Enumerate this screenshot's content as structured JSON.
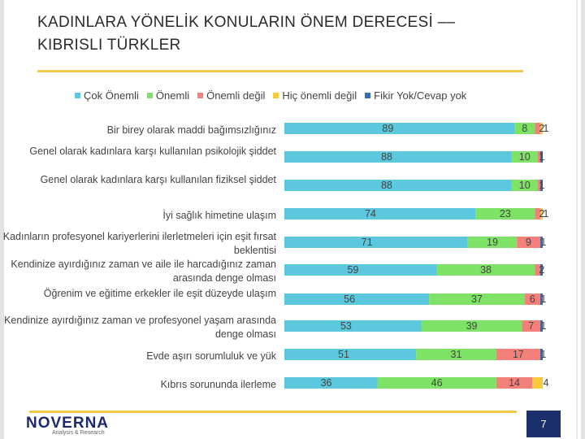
{
  "slide": {
    "title_line1": "KADINLARA YÖNELİK KONULARIN ÖNEM DERECESİ ––",
    "title_line2": "KIBRISLI TÜRKLER",
    "logo": "NOVERNA",
    "logo_sub": "Analysis & Research",
    "page_number": "7"
  },
  "legend": [
    {
      "label": "Çok Önemli",
      "color": "#5bc8dd"
    },
    {
      "label": "Önemli",
      "color": "#7ee266"
    },
    {
      "label": "Önemli değil",
      "color": "#f4807a"
    },
    {
      "label": "Hiç önemli değil",
      "color": "#f8c93c"
    },
    {
      "label": "Fikir Yok/Cevap yok",
      "color": "#2f6fb7"
    }
  ],
  "chart_data": {
    "type": "bar",
    "orientation": "horizontal",
    "stacked": true,
    "percent_scale": [
      0,
      100
    ],
    "categories": [
      "Bir birey olarak maddi bağımsızlığınız",
      "Genel olarak kadınlara karşı kullanılan psikolojik şiddet",
      "Genel olarak kadınlara karşı kullanılan fiziksel şiddet",
      "İyi sağlık himetine ulaşım",
      "Kadınların profesyonel kariyerlerini ilerletmeleri için eşit fırsat beklentisi",
      "Kendinize ayırdığınız zaman ve aile ile harcadığınız zaman arasında denge olması",
      "Öğrenim ve eğitime erkekler ile eşit düzeyde ulaşım",
      "Kendinize ayırdığınız zaman ve profesyonel yaşam arasında denge olması",
      "Evde aşırı sorumluluk ve yük",
      "Kıbrıs sorununda ilerleme"
    ],
    "series": [
      {
        "name": "Çok Önemli",
        "color": "#5bc8dd",
        "values": [
          89,
          88,
          88,
          74,
          71,
          59,
          56,
          53,
          51,
          36
        ]
      },
      {
        "name": "Önemli",
        "color": "#7ee266",
        "values": [
          8,
          10,
          10,
          23,
          19,
          38,
          37,
          39,
          31,
          46
        ]
      },
      {
        "name": "Önemli değil",
        "color": "#f4807a",
        "values": [
          2,
          1,
          1,
          2,
          9,
          2,
          6,
          7,
          17,
          14
        ]
      },
      {
        "name": "Hiç önemli değil",
        "color": "#f8c93c",
        "values": [
          1,
          0,
          0,
          1,
          0,
          0,
          0,
          0,
          0,
          4
        ]
      },
      {
        "name": "Fikir Yok/Cevap yok",
        "color": "#2f6fb7",
        "values": [
          0,
          1,
          1,
          0,
          1,
          1,
          1,
          1,
          1,
          0
        ]
      }
    ],
    "data_labels": [
      [
        "89",
        "8",
        "2",
        "1",
        ""
      ],
      [
        "88",
        "10",
        "1",
        "",
        ""
      ],
      [
        "88",
        "10",
        "1",
        "",
        ""
      ],
      [
        "74",
        "23",
        "2",
        "1",
        ""
      ],
      [
        "71",
        "19",
        "9",
        "1",
        ""
      ],
      [
        "59",
        "38",
        "2",
        "",
        ""
      ],
      [
        "56",
        "37",
        "6",
        "1",
        ""
      ],
      [
        "53",
        "39",
        "7",
        "1",
        ""
      ],
      [
        "51",
        "31",
        "17",
        "1",
        ""
      ],
      [
        "36",
        "46",
        "14",
        "4",
        ""
      ]
    ]
  }
}
